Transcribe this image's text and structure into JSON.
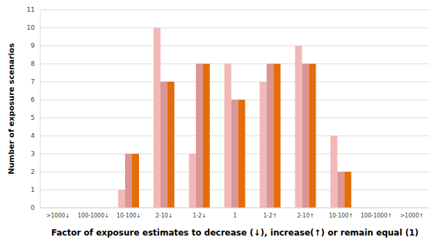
{
  "chart_data": {
    "type": "bar",
    "x_label": "Factor of exposure estimates to decrease (↓), increase(↑) or remain equal (1)",
    "y_label": "Number of exposure  scenarios",
    "categories": [
      ">1000↓",
      "100-1000↓",
      "10-100↓",
      "2-10↓",
      "1-2↓",
      "1",
      "1-2↑",
      "2-10↑",
      "10-100↑",
      "100-1000↑",
      ">1000↑"
    ],
    "series": [
      {
        "color": "#f2b8b8",
        "values": [
          0,
          0,
          1,
          10,
          3,
          8,
          7,
          9,
          4,
          0,
          0
        ]
      },
      {
        "color": "#d99694",
        "values": [
          0,
          0,
          3,
          7,
          8,
          6,
          8,
          8,
          2,
          0,
          0
        ]
      },
      {
        "color": "#e46c0a",
        "values": [
          0,
          0,
          3,
          7,
          8,
          6,
          8,
          8,
          2,
          0,
          0
        ]
      }
    ],
    "ylim": [
      0,
      11
    ],
    "yticks": [
      0,
      1,
      2,
      3,
      4,
      5,
      6,
      7,
      8,
      9,
      10,
      11
    ],
    "grid": true
  }
}
